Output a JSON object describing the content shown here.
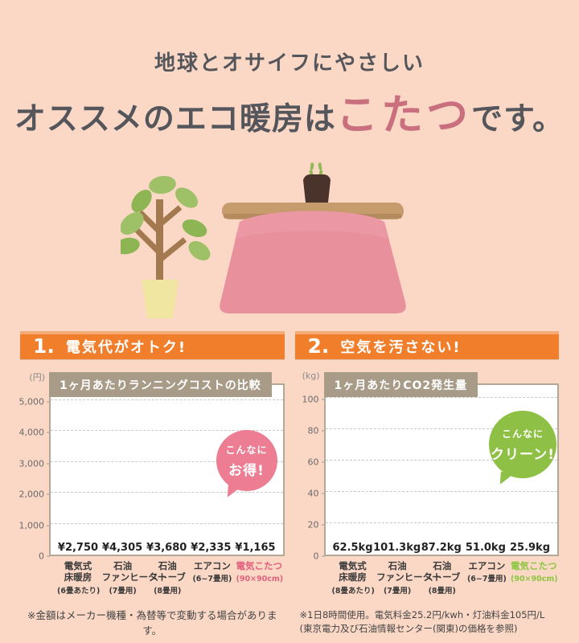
{
  "page": {
    "background": "#FBD8C6",
    "title_line1": "地球とオサイフにやさしい",
    "title_line2_pre": "オススメのエコ暖房は",
    "title_line2_highlight": "こたつ",
    "title_line2_post": "です。",
    "highlight_color": "#C96F7E",
    "header_bar_color": "#F07E2B",
    "chart_tab_color": "#A89B88"
  },
  "sections": [
    {
      "number": "1.",
      "heading": "電気代がオトク!"
    },
    {
      "number": "2.",
      "heading": "空気を汚さない!"
    }
  ],
  "chart_data": [
    {
      "type": "bar",
      "title": "1ヶ月あたりランニングコストの比較",
      "unit_label": "(円)",
      "ylabel": "円",
      "ylim": [
        0,
        5600
      ],
      "yticks": [
        5000,
        4000,
        3000,
        2000,
        1000,
        0
      ],
      "ytick_labels": [
        "5,000",
        "4,000",
        "3,000",
        "2,000",
        "1,000",
        "0"
      ],
      "grid": "dashed",
      "categories": [
        "電気式床暖房",
        "石油ファンヒーター",
        "石油ストーブ",
        "エアコン",
        "電気こたつ"
      ],
      "category_lines": [
        [
          "電気式",
          "床暖房"
        ],
        [
          "石油",
          "ファンヒーター"
        ],
        [
          "石油",
          "ストーブ"
        ],
        [
          "エアコン"
        ],
        [
          "電気こたつ"
        ]
      ],
      "category_notes": [
        "(6畳あたり)",
        "(7畳用)",
        "(8畳用)",
        "(6~7畳用)",
        "(90×90cm)"
      ],
      "values": [
        2750,
        4305,
        3680,
        2335,
        1165
      ],
      "value_labels": [
        "¥2,750",
        "¥4,305",
        "¥3,680",
        "¥2,335",
        "¥1,165"
      ],
      "bar_color": "#ACACAC",
      "accent_index": 4,
      "accent_color": "#E2617C",
      "badge": {
        "line1": "こんなに",
        "line2": "お得!",
        "color": "#EC7D92"
      },
      "note": "※金額はメーカー機種・為替等で変動する場合があります。"
    },
    {
      "type": "bar",
      "title": "1ヶ月あたりCO2発生量",
      "unit_label": "(kg)",
      "ylabel": "kg",
      "ylim": [
        0,
        110
      ],
      "yticks": [
        100,
        80,
        60,
        40,
        20,
        0
      ],
      "ytick_labels": [
        "100",
        "80",
        "60",
        "40",
        "20",
        "0"
      ],
      "grid": "dashed",
      "categories": [
        "電気式床暖房",
        "石油ファンヒーター",
        "石油ストーブ",
        "エアコン",
        "電気こたつ"
      ],
      "category_lines": [
        [
          "電気式",
          "床暖房"
        ],
        [
          "石油",
          "ファンヒーター"
        ],
        [
          "石油",
          "ストーブ"
        ],
        [
          "エアコン"
        ],
        [
          "電気こたつ"
        ]
      ],
      "category_notes": [
        "(8畳あたり)",
        "(7畳用)",
        "(8畳用)",
        "(6~7畳用)",
        "(90×90cm)"
      ],
      "values": [
        62.5,
        101.3,
        87.2,
        51.0,
        25.9
      ],
      "value_labels": [
        "62.5kg",
        "101.3kg",
        "87.2kg",
        "51.0kg",
        "25.9kg"
      ],
      "bar_color": "#ACACAC",
      "accent_index": 4,
      "accent_color": "#8CC63F",
      "badge": {
        "line1": "こんなに",
        "line2": "クリーン!",
        "color": "#8DC044"
      },
      "note_lines": [
        "※1日8時間使用。電気料金25.2円/kwh・灯油料金105円/L",
        "(東京電力及び石油情報センター(関東)の価格を参照)"
      ]
    }
  ]
}
